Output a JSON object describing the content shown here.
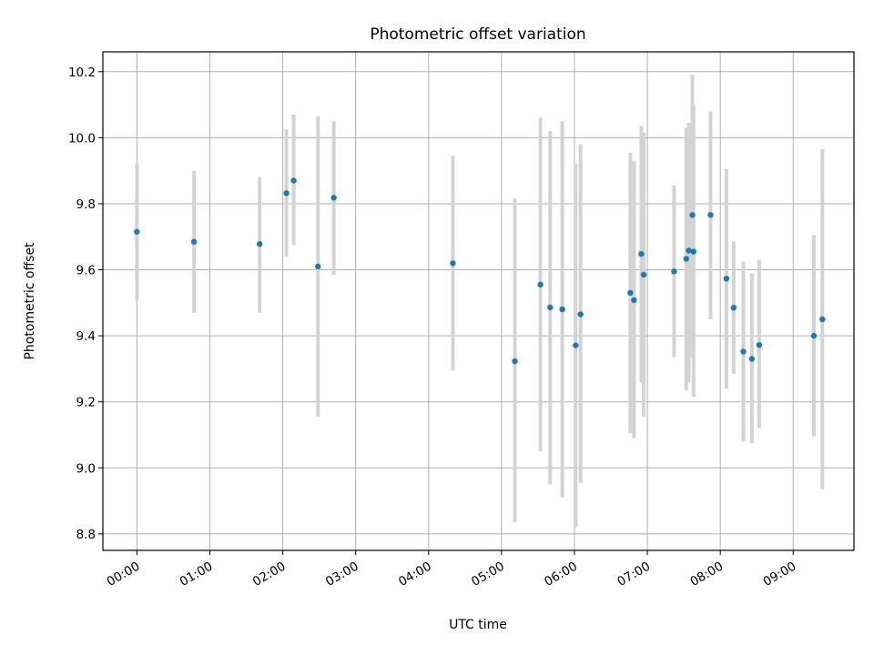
{
  "chart_data": {
    "type": "scatter",
    "title": "Photometric offset variation",
    "xlabel": "UTC time",
    "ylabel": "Photometric offset",
    "xlim": [
      "-00:28",
      "09:50"
    ],
    "ylim": [
      8.75,
      10.26
    ],
    "grid": true,
    "legend": "none",
    "x_tick_labels": [
      "00:00",
      "01:00",
      "02:00",
      "03:00",
      "04:00",
      "05:00",
      "06:00",
      "07:00",
      "08:00",
      "09:00"
    ],
    "y_tick_values": [
      8.8,
      9.0,
      9.2,
      9.4,
      9.6,
      9.8,
      10.0,
      10.2
    ],
    "y_tick_labels": [
      "8.8",
      "9.0",
      "9.2",
      "9.4",
      "9.6",
      "9.8",
      "10.0",
      "10.2"
    ],
    "marker_color": "#1f77b4",
    "errorbar_color": "#d3d3d3",
    "points": [
      {
        "time": "00:00",
        "y": 9.715,
        "lo": 9.51,
        "hi": 9.92
      },
      {
        "time": "00:47",
        "y": 9.685,
        "lo": 9.47,
        "hi": 9.9
      },
      {
        "time": "01:41",
        "y": 9.678,
        "lo": 9.47,
        "hi": 9.88
      },
      {
        "time": "02:03",
        "y": 9.832,
        "lo": 9.64,
        "hi": 10.025
      },
      {
        "time": "02:09",
        "y": 9.87,
        "lo": 9.675,
        "hi": 10.07
      },
      {
        "time": "02:29",
        "y": 9.61,
        "lo": 9.155,
        "hi": 10.065
      },
      {
        "time": "02:42",
        "y": 9.818,
        "lo": 9.585,
        "hi": 10.05
      },
      {
        "time": "04:20",
        "y": 9.62,
        "lo": 9.295,
        "hi": 9.945
      },
      {
        "time": "05:11",
        "y": 9.323,
        "lo": 8.835,
        "hi": 9.815
      },
      {
        "time": "05:32",
        "y": 9.555,
        "lo": 9.05,
        "hi": 10.06
      },
      {
        "time": "05:40",
        "y": 9.486,
        "lo": 8.95,
        "hi": 10.02
      },
      {
        "time": "05:50",
        "y": 9.48,
        "lo": 8.91,
        "hi": 10.05
      },
      {
        "time": "06:01",
        "y": 9.371,
        "lo": 8.82,
        "hi": 9.92
      },
      {
        "time": "06:05",
        "y": 9.465,
        "lo": 8.955,
        "hi": 9.98
      },
      {
        "time": "06:46",
        "y": 9.53,
        "lo": 9.105,
        "hi": 9.955
      },
      {
        "time": "06:49",
        "y": 9.508,
        "lo": 9.09,
        "hi": 9.93
      },
      {
        "time": "06:55",
        "y": 9.648,
        "lo": 9.26,
        "hi": 10.035
      },
      {
        "time": "06:57",
        "y": 9.585,
        "lo": 9.155,
        "hi": 10.015
      },
      {
        "time": "07:22",
        "y": 9.595,
        "lo": 9.335,
        "hi": 9.855
      },
      {
        "time": "07:32",
        "y": 9.633,
        "lo": 9.235,
        "hi": 10.03
      },
      {
        "time": "07:34",
        "y": 9.658,
        "lo": 9.26,
        "hi": 10.045
      },
      {
        "time": "07:37",
        "y": 9.766,
        "lo": 9.335,
        "hi": 10.19
      },
      {
        "time": "07:38",
        "y": 9.655,
        "lo": 9.215,
        "hi": 10.1
      },
      {
        "time": "07:52",
        "y": 9.766,
        "lo": 9.45,
        "hi": 10.08
      },
      {
        "time": "08:05",
        "y": 9.573,
        "lo": 9.24,
        "hi": 9.905
      },
      {
        "time": "08:11",
        "y": 9.485,
        "lo": 9.285,
        "hi": 9.685
      },
      {
        "time": "08:19",
        "y": 9.352,
        "lo": 9.08,
        "hi": 9.625
      },
      {
        "time": "08:26",
        "y": 9.33,
        "lo": 9.075,
        "hi": 9.59
      },
      {
        "time": "08:32",
        "y": 9.372,
        "lo": 9.12,
        "hi": 9.63
      },
      {
        "time": "09:17",
        "y": 9.4,
        "lo": 9.095,
        "hi": 9.705
      },
      {
        "time": "09:24",
        "y": 9.45,
        "lo": 8.935,
        "hi": 9.965
      }
    ]
  }
}
